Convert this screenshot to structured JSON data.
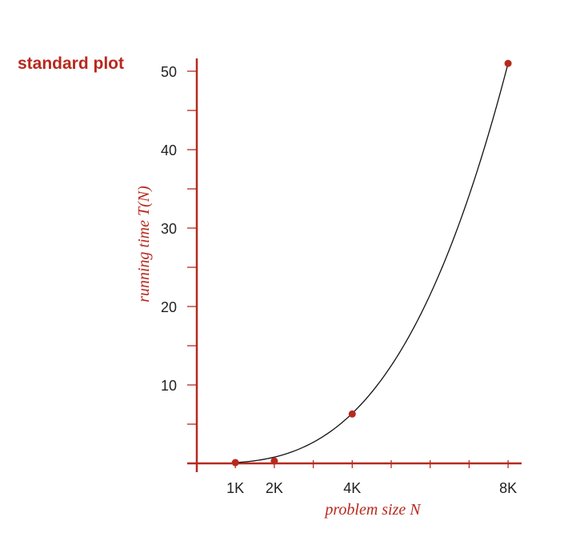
{
  "title": "standard plot",
  "chart_data": {
    "type": "line",
    "title": "standard plot",
    "xlabel": "problem size N",
    "ylabel": "running time T(N)",
    "x_ticks": [
      {
        "value": 1000,
        "label": "1K"
      },
      {
        "value": 2000,
        "label": "2K"
      },
      {
        "value": 4000,
        "label": "4K"
      },
      {
        "value": 8000,
        "label": "8K"
      }
    ],
    "y_ticks": [
      {
        "value": 10,
        "label": "10"
      },
      {
        "value": 20,
        "label": "20"
      },
      {
        "value": 30,
        "label": "30"
      },
      {
        "value": 40,
        "label": "40"
      },
      {
        "value": 50,
        "label": "50"
      }
    ],
    "xlim": [
      0,
      8300
    ],
    "ylim": [
      0,
      52
    ],
    "points": [
      {
        "x": 1000,
        "y": 0.1
      },
      {
        "x": 2000,
        "y": 0.3
      },
      {
        "x": 4000,
        "y": 6.3
      },
      {
        "x": 8000,
        "y": 51
      }
    ],
    "curve": {
      "form": "power",
      "exponent": 3
    },
    "colors": {
      "accent": "#b8291e",
      "curve": "#111111",
      "text": "#222222"
    }
  }
}
